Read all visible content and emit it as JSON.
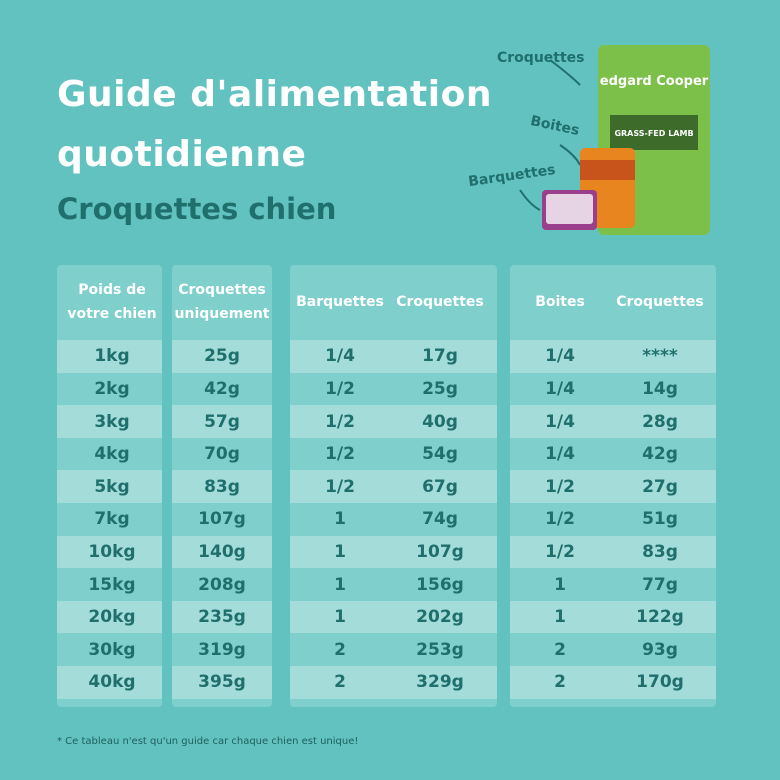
{
  "header": {
    "title": [
      "Guide d'alimentation",
      "quotidienne"
    ],
    "subtitle": "Croquettes chien"
  },
  "products": {
    "labels": [
      "Croquettes",
      "Boites",
      "Barquettes"
    ],
    "brand": "edgard Cooper",
    "flavor": "GRASS-FED LAMB"
  },
  "table": {
    "headers": [
      [
        "Poids de",
        "votre chien"
      ],
      [
        "Croquettes",
        "uniquement"
      ],
      [
        "Barquettes"
      ],
      [
        "Croquettes"
      ],
      [
        "Boites"
      ],
      [
        "Croquettes"
      ]
    ],
    "rows": [
      [
        "1kg",
        "25g",
        "1/4",
        "17g",
        "1/4",
        "****"
      ],
      [
        "2kg",
        "42g",
        "1/2",
        "25g",
        "1/4",
        "14g"
      ],
      [
        "3kg",
        "57g",
        "1/2",
        "40g",
        "1/4",
        "28g"
      ],
      [
        "4kg",
        "70g",
        "1/2",
        "54g",
        "1/4",
        "42g"
      ],
      [
        "5kg",
        "83g",
        "1/2",
        "67g",
        "1/2",
        "27g"
      ],
      [
        "7kg",
        "107g",
        "1",
        "74g",
        "1/2",
        "51g"
      ],
      [
        "10kg",
        "140g",
        "1",
        "107g",
        "1/2",
        "83g"
      ],
      [
        "15kg",
        "208g",
        "1",
        "156g",
        "1",
        "77g"
      ],
      [
        "20kg",
        "235g",
        "1",
        "202g",
        "1",
        "122g"
      ],
      [
        "30kg",
        "319g",
        "2",
        "253g",
        "2",
        "93g"
      ],
      [
        "40kg",
        "395g",
        "2",
        "329g",
        "2",
        "170g"
      ]
    ]
  },
  "footnote": "* Ce tableau n'est qu'un guide car chaque chien est unique!"
}
